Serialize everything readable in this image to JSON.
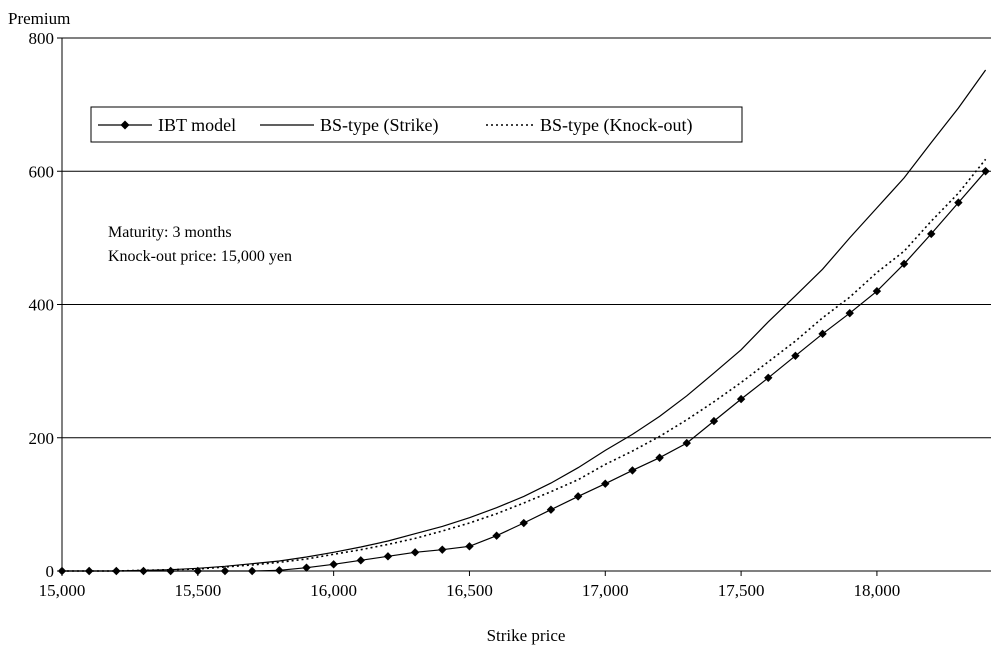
{
  "chart_data": {
    "type": "line",
    "ylabel": "Premium",
    "xlabel": "Strike price",
    "xlim": [
      15000,
      18420
    ],
    "ylim": [
      0,
      800
    ],
    "x_ticks": [
      15000,
      15500,
      16000,
      16500,
      17000,
      17500,
      18000
    ],
    "x_tick_labels": [
      "15,000",
      "15,500",
      "16,000",
      "16,500",
      "17,000",
      "17,500",
      "18,000"
    ],
    "y_ticks": [
      0,
      200,
      400,
      600,
      800
    ],
    "y_tick_labels": [
      "0",
      "200",
      "400",
      "600",
      "800"
    ],
    "gridlines": "horizontal",
    "legend_position": "top-left",
    "annotations": [
      "Maturity: 3 months",
      "Knock-out price: 15,000 yen"
    ],
    "series": [
      {
        "name": "IBT model",
        "style": "solid-diamond",
        "x": [
          15000,
          15100,
          15200,
          15300,
          15400,
          15500,
          15600,
          15700,
          15800,
          15900,
          16000,
          16100,
          16200,
          16300,
          16400,
          16500,
          16600,
          16700,
          16800,
          16900,
          17000,
          17100,
          17200,
          17300,
          17400,
          17500,
          17600,
          17700,
          17800,
          17900,
          18000,
          18100,
          18200,
          18300,
          18400
        ],
        "values": [
          0,
          0,
          0,
          0,
          0,
          0,
          0,
          0,
          1,
          5,
          10,
          16,
          22,
          28,
          32,
          37,
          53,
          72,
          92,
          112,
          131,
          151,
          170,
          192,
          225,
          258,
          290,
          323,
          356,
          387,
          420,
          461,
          506,
          553,
          600
        ]
      },
      {
        "name": "BS-type (Strike)",
        "style": "solid",
        "x": [
          15000,
          15100,
          15200,
          15300,
          15400,
          15500,
          15600,
          15700,
          15800,
          15900,
          16000,
          16100,
          16200,
          16300,
          16400,
          16500,
          16600,
          16700,
          16800,
          16900,
          17000,
          17100,
          17200,
          17300,
          17400,
          17500,
          17600,
          17700,
          17800,
          17900,
          18000,
          18100,
          18200,
          18300,
          18400
        ],
        "values": [
          0,
          0,
          0,
          1,
          2,
          4,
          7,
          11,
          15,
          21,
          28,
          36,
          45,
          56,
          67,
          80,
          95,
          112,
          132,
          155,
          181,
          205,
          232,
          263,
          297,
          332,
          374,
          413,
          453,
          500,
          545,
          590,
          643,
          695,
          752
        ]
      },
      {
        "name": "BS-type (Knock-out)",
        "style": "dotted",
        "x": [
          15000,
          15100,
          15200,
          15300,
          15400,
          15500,
          15600,
          15700,
          15800,
          15900,
          16000,
          16100,
          16200,
          16300,
          16400,
          16500,
          16600,
          16700,
          16800,
          16900,
          17000,
          17100,
          17200,
          17300,
          17400,
          17500,
          17600,
          17700,
          17800,
          17900,
          18000,
          18100,
          18200,
          18300,
          18400
        ],
        "values": [
          0,
          0,
          0,
          1,
          2,
          3,
          6,
          9,
          13,
          18,
          25,
          32,
          40,
          49,
          60,
          72,
          86,
          102,
          119,
          137,
          160,
          180,
          202,
          227,
          254,
          283,
          314,
          345,
          380,
          411,
          448,
          480,
          525,
          567,
          618
        ]
      }
    ]
  }
}
